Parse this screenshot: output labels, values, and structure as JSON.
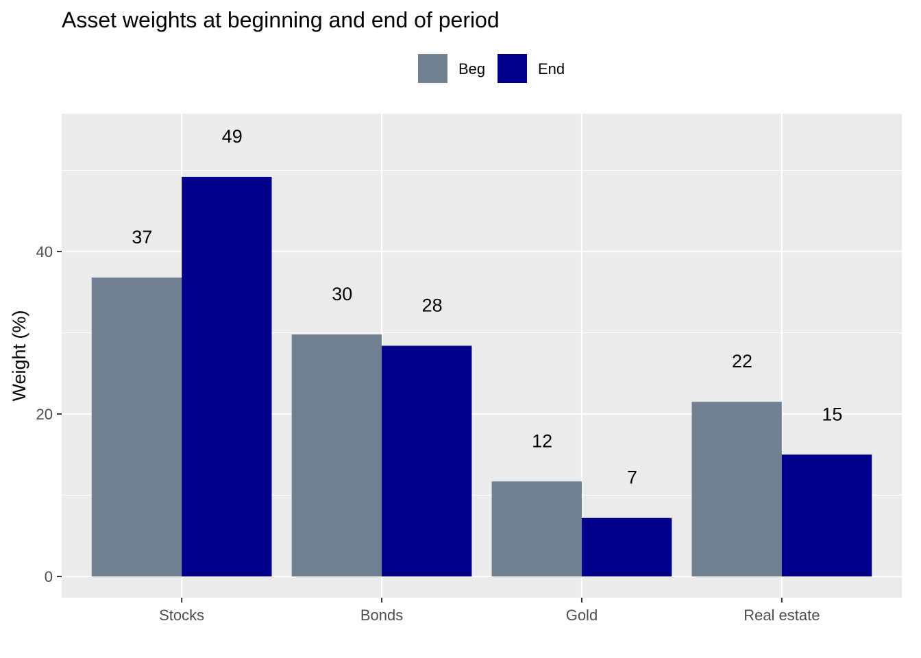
{
  "chart_data": {
    "type": "bar",
    "title": "Asset weights at beginning and end of period",
    "xlabel": "",
    "ylabel": "Weight (%)",
    "categories": [
      "Stocks",
      "Bonds",
      "Gold",
      "Real estate"
    ],
    "series": [
      {
        "name": "Beg",
        "values": [
          36.8,
          29.8,
          11.7,
          21.5
        ],
        "labels": [
          "37",
          "30",
          "12",
          "22"
        ],
        "color": "#708090"
      },
      {
        "name": "End",
        "values": [
          49.2,
          28.4,
          7.2,
          15.0
        ],
        "labels": [
          "49",
          "28",
          "7",
          "15"
        ],
        "color": "#00008b"
      }
    ],
    "yticks": [
      0,
      20,
      40
    ],
    "ytick_labels": [
      "0",
      "20",
      "40"
    ],
    "ylim": [
      -2.7,
      57
    ],
    "legend_position": "top",
    "grid": true,
    "panel_background": "#ebebeb",
    "grid_color": "#ffffff"
  }
}
